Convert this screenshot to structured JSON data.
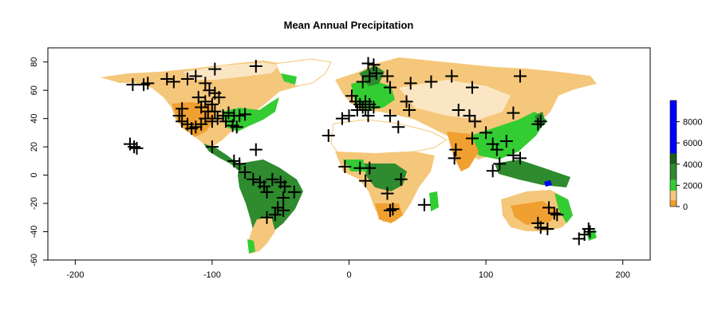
{
  "title": "Mean Annual Precipitation",
  "chart_data": {
    "type": "map",
    "title": "Mean Annual Precipitation",
    "xlim": [
      -220,
      220
    ],
    "ylim": [
      -60,
      90
    ],
    "x_ticks": [
      -200,
      -100,
      0,
      100,
      200
    ],
    "y_ticks": [
      -60,
      -40,
      -20,
      0,
      20,
      40,
      60,
      80
    ],
    "x_tick_labels": [
      "-200",
      "-100",
      "0",
      "100",
      "200"
    ],
    "y_tick_labels": [
      "-60",
      "-40",
      "-20",
      "0",
      "20",
      "40",
      "60",
      "80"
    ],
    "legend": {
      "placement": "right",
      "range": [
        0,
        10000
      ],
      "ticks": [
        0,
        2000,
        4000,
        6000,
        8000
      ],
      "tick_labels": [
        "0",
        "2000",
        "4000",
        "6000",
        "8000"
      ],
      "bands": [
        {
          "from": 0,
          "to": 600,
          "color": "#f0a030"
        },
        {
          "from": 600,
          "to": 1500,
          "color": "#f5c77a"
        },
        {
          "from": 1500,
          "to": 2500,
          "color": "#33cc33"
        },
        {
          "from": 2500,
          "to": 4000,
          "color": "#2e8b2e"
        },
        {
          "from": 4000,
          "to": 5000,
          "color": "#1a5e1a"
        },
        {
          "from": 5000,
          "to": 10000,
          "color": "#0000ff"
        }
      ]
    },
    "sites": [
      {
        "lon": -160,
        "lat": 22
      },
      {
        "lon": -157,
        "lat": 20
      },
      {
        "lon": -155,
        "lat": 19
      },
      {
        "lon": -158,
        "lat": 64
      },
      {
        "lon": -150,
        "lat": 64
      },
      {
        "lon": -147,
        "lat": 65
      },
      {
        "lon": -133,
        "lat": 68
      },
      {
        "lon": -128,
        "lat": 66
      },
      {
        "lon": -118,
        "lat": 68
      },
      {
        "lon": -112,
        "lat": 70
      },
      {
        "lon": -98,
        "lat": 75
      },
      {
        "lon": -68,
        "lat": 77
      },
      {
        "lon": -105,
        "lat": 65
      },
      {
        "lon": -102,
        "lat": 60
      },
      {
        "lon": -98,
        "lat": 58
      },
      {
        "lon": -110,
        "lat": 55
      },
      {
        "lon": -105,
        "lat": 52
      },
      {
        "lon": -100,
        "lat": 50
      },
      {
        "lon": -95,
        "lat": 55
      },
      {
        "lon": -108,
        "lat": 48
      },
      {
        "lon": -103,
        "lat": 45
      },
      {
        "lon": -98,
        "lat": 45
      },
      {
        "lon": -122,
        "lat": 47
      },
      {
        "lon": -124,
        "lat": 42
      },
      {
        "lon": -122,
        "lat": 38
      },
      {
        "lon": -118,
        "lat": 36
      },
      {
        "lon": -115,
        "lat": 33
      },
      {
        "lon": -112,
        "lat": 34
      },
      {
        "lon": -108,
        "lat": 36
      },
      {
        "lon": -105,
        "lat": 40
      },
      {
        "lon": -100,
        "lat": 38
      },
      {
        "lon": -96,
        "lat": 40
      },
      {
        "lon": -92,
        "lat": 42
      },
      {
        "lon": -88,
        "lat": 44
      },
      {
        "lon": -84,
        "lat": 42
      },
      {
        "lon": -80,
        "lat": 42
      },
      {
        "lon": -76,
        "lat": 43
      },
      {
        "lon": -90,
        "lat": 38
      },
      {
        "lon": -85,
        "lat": 35
      },
      {
        "lon": -82,
        "lat": 34
      },
      {
        "lon": -100,
        "lat": 20
      },
      {
        "lon": -84,
        "lat": 10
      },
      {
        "lon": -80,
        "lat": 8
      },
      {
        "lon": -68,
        "lat": 18
      },
      {
        "lon": -76,
        "lat": 2
      },
      {
        "lon": -70,
        "lat": -3
      },
      {
        "lon": -65,
        "lat": -5
      },
      {
        "lon": -62,
        "lat": -8
      },
      {
        "lon": -60,
        "lat": -12
      },
      {
        "lon": -56,
        "lat": -3
      },
      {
        "lon": -50,
        "lat": -5
      },
      {
        "lon": -47,
        "lat": -8
      },
      {
        "lon": -40,
        "lat": -12
      },
      {
        "lon": -48,
        "lat": -16
      },
      {
        "lon": -52,
        "lat": -23
      },
      {
        "lon": -48,
        "lat": -25
      },
      {
        "lon": -54,
        "lat": -28
      },
      {
        "lon": -60,
        "lat": -30
      },
      {
        "lon": -15,
        "lat": 28
      },
      {
        "lon": 2,
        "lat": 56
      },
      {
        "lon": 5,
        "lat": 52
      },
      {
        "lon": 8,
        "lat": 50
      },
      {
        "lon": 10,
        "lat": 48
      },
      {
        "lon": 12,
        "lat": 52
      },
      {
        "lon": 15,
        "lat": 50
      },
      {
        "lon": 6,
        "lat": 46
      },
      {
        "lon": 12,
        "lat": 46
      },
      {
        "lon": 18,
        "lat": 48
      },
      {
        "lon": 0,
        "lat": 42
      },
      {
        "lon": -5,
        "lat": 40
      },
      {
        "lon": 14,
        "lat": 42
      },
      {
        "lon": 10,
        "lat": 66
      },
      {
        "lon": 15,
        "lat": 70
      },
      {
        "lon": 20,
        "lat": 72
      },
      {
        "lon": 14,
        "lat": 79
      },
      {
        "lon": 18,
        "lat": 78
      },
      {
        "lon": 28,
        "lat": 70
      },
      {
        "lon": 30,
        "lat": 62
      },
      {
        "lon": 45,
        "lat": 65
      },
      {
        "lon": 60,
        "lat": 66
      },
      {
        "lon": 75,
        "lat": 70
      },
      {
        "lon": 90,
        "lat": 62
      },
      {
        "lon": 125,
        "lat": 70
      },
      {
        "lon": 42,
        "lat": 52
      },
      {
        "lon": 44,
        "lat": 46
      },
      {
        "lon": 30,
        "lat": 42
      },
      {
        "lon": 36,
        "lat": 34
      },
      {
        "lon": 80,
        "lat": 46
      },
      {
        "lon": 88,
        "lat": 42
      },
      {
        "lon": 92,
        "lat": 38
      },
      {
        "lon": 78,
        "lat": 18
      },
      {
        "lon": 77,
        "lat": 12
      },
      {
        "lon": 90,
        "lat": 26
      },
      {
        "lon": 100,
        "lat": 30
      },
      {
        "lon": 105,
        "lat": 22
      },
      {
        "lon": 108,
        "lat": 18
      },
      {
        "lon": 115,
        "lat": 24
      },
      {
        "lon": 120,
        "lat": 44
      },
      {
        "lon": 138,
        "lat": 36
      },
      {
        "lon": 140,
        "lat": 38
      },
      {
        "lon": 120,
        "lat": 14
      },
      {
        "lon": 125,
        "lat": 12
      },
      {
        "lon": 110,
        "lat": 8
      },
      {
        "lon": 105,
        "lat": 3
      },
      {
        "lon": -3,
        "lat": 6
      },
      {
        "lon": 8,
        "lat": 5
      },
      {
        "lon": 15,
        "lat": 5
      },
      {
        "lon": 12,
        "lat": -4
      },
      {
        "lon": 38,
        "lat": -3
      },
      {
        "lon": 28,
        "lat": -13
      },
      {
        "lon": 32,
        "lat": -24
      },
      {
        "lon": 30,
        "lat": -25
      },
      {
        "lon": 55,
        "lat": -21
      },
      {
        "lon": 146,
        "lat": -23
      },
      {
        "lon": 150,
        "lat": -27
      },
      {
        "lon": 152,
        "lat": -28
      },
      {
        "lon": 138,
        "lat": -34
      },
      {
        "lon": 140,
        "lat": -37
      },
      {
        "lon": 145,
        "lat": -38
      },
      {
        "lon": 168,
        "lat": -45
      },
      {
        "lon": 172,
        "lat": -42
      },
      {
        "lon": 175,
        "lat": -38
      },
      {
        "lon": 176,
        "lat": -40
      }
    ]
  }
}
